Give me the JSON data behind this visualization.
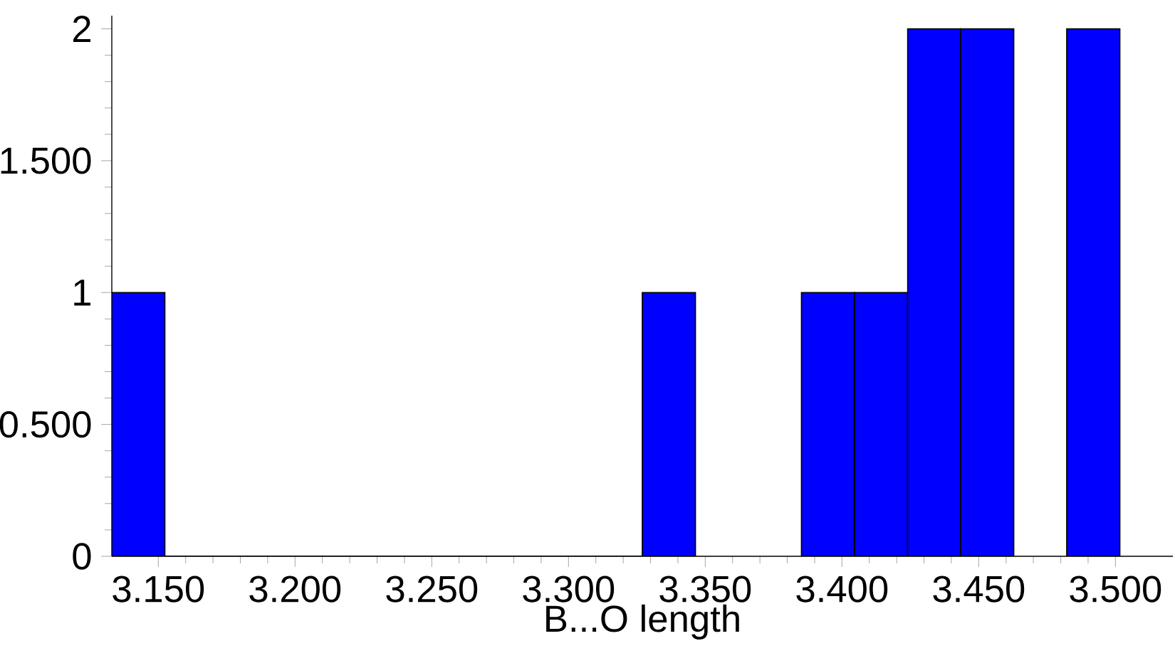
{
  "chart_data": {
    "type": "histogram",
    "xlabel": "B...O length",
    "bins": [
      3.133,
      3.1524,
      3.1718,
      3.1912,
      3.2106,
      3.23,
      3.2494,
      3.2688,
      3.2882,
      3.3076,
      3.327,
      3.3464,
      3.3658,
      3.3852,
      3.4046,
      3.424,
      3.4434,
      3.4628,
      3.4822,
      3.5016,
      3.521
    ],
    "values": [
      1,
      0,
      0,
      0,
      0,
      0,
      0,
      0,
      0,
      0,
      1,
      null,
      null,
      1,
      1,
      2,
      2,
      null,
      2,
      null
    ],
    "color": "#0000ff",
    "xlim": [
      3.133,
      3.521
    ],
    "ylim": [
      0,
      2.05
    ],
    "xticks": [
      {
        "value": 3.15,
        "label": "3.150"
      },
      {
        "value": 3.2,
        "label": "3.200"
      },
      {
        "value": 3.25,
        "label": "3.250"
      },
      {
        "value": 3.3,
        "label": "3.300"
      },
      {
        "value": 3.35,
        "label": "3.350"
      },
      {
        "value": 3.4,
        "label": "3.400"
      },
      {
        "value": 3.45,
        "label": "3.450"
      },
      {
        "value": 3.5,
        "label": "3.500"
      }
    ],
    "yticks": [
      0,
      {
        "value": 0.5,
        "label": "0.500"
      },
      1,
      {
        "value": 1.5,
        "label": "1.500"
      },
      2
    ]
  }
}
